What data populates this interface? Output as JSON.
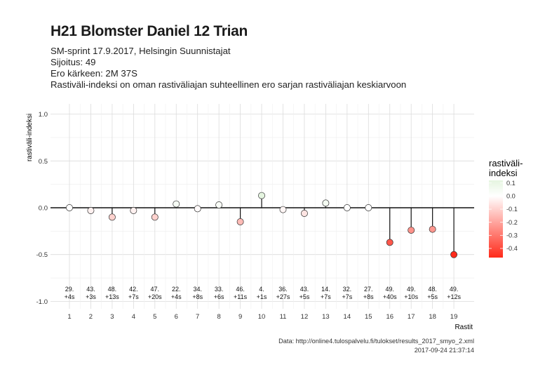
{
  "title": "H21 Blomster Daniel 12 Trian",
  "subtitle_lines": [
    "SM-sprint 17.9.2017, Helsingin Suunnistajat",
    "Sijoitus: 49",
    "Ero kärkeen: 2M 37S",
    "Rastiväli-indeksi on oman rastiväliajan suhteellinen ero sarjan rastiväliajan keskiarvoon"
  ],
  "caption": {
    "source": "Data: http://online4.tulospalvelu.fi/tulokset/results_2017_smyo_2.xml",
    "timestamp": "2017-09-24 21:37:14"
  },
  "chart_data": {
    "type": "lollipop",
    "xlabel": "Rastit",
    "ylabel": "rastiväli-indeksi",
    "ylim": [
      -1.05,
      1.1
    ],
    "yticks": [
      1.0,
      0.5,
      0.0,
      -0.5,
      -1.0
    ],
    "ytick_labels": [
      "1.0",
      "0.5",
      "0.0",
      "-0.5",
      "-1.0"
    ],
    "grid": true,
    "x": [
      1,
      2,
      3,
      4,
      5,
      6,
      7,
      8,
      9,
      10,
      11,
      12,
      13,
      14,
      15,
      16,
      17,
      18,
      19
    ],
    "values": [
      0.0,
      -0.03,
      -0.1,
      -0.03,
      -0.1,
      0.04,
      -0.01,
      0.03,
      -0.15,
      0.13,
      -0.02,
      -0.06,
      0.05,
      0.0,
      0.0,
      -0.37,
      -0.24,
      -0.23,
      -0.5
    ],
    "annotations": [
      [
        "29.",
        "+4s"
      ],
      [
        "43.",
        "+3s"
      ],
      [
        "48.",
        "+13s"
      ],
      [
        "42.",
        "+7s"
      ],
      [
        "47.",
        "+20s"
      ],
      [
        "22.",
        "+4s"
      ],
      [
        "34.",
        "+8s"
      ],
      [
        "33.",
        "+6s"
      ],
      [
        "46.",
        "+11s"
      ],
      [
        "4.",
        "+1s"
      ],
      [
        "36.",
        "+27s"
      ],
      [
        "43.",
        "+5s"
      ],
      [
        "14.",
        "+7s"
      ],
      [
        "32.",
        "+7s"
      ],
      [
        "27.",
        "+8s"
      ],
      [
        "49.",
        "+40s"
      ],
      [
        "49.",
        "+10s"
      ],
      [
        "48.",
        "+5s"
      ],
      [
        "49.",
        "+12s"
      ]
    ],
    "legend": {
      "title_lines": [
        "rastiväli-",
        "indeksi"
      ],
      "ticks": [
        0.1,
        0.0,
        -0.1,
        -0.2,
        -0.3,
        -0.4
      ],
      "tick_labels": [
        "0.1",
        "0.0",
        "-0.1",
        "-0.2",
        "-0.3",
        "-0.4"
      ],
      "range": [
        -0.47,
        0.12
      ],
      "placement": "right",
      "colors": {
        "high": "#e5f5e0",
        "mid": "#ffffff",
        "low": "#ff2a1a"
      }
    }
  }
}
